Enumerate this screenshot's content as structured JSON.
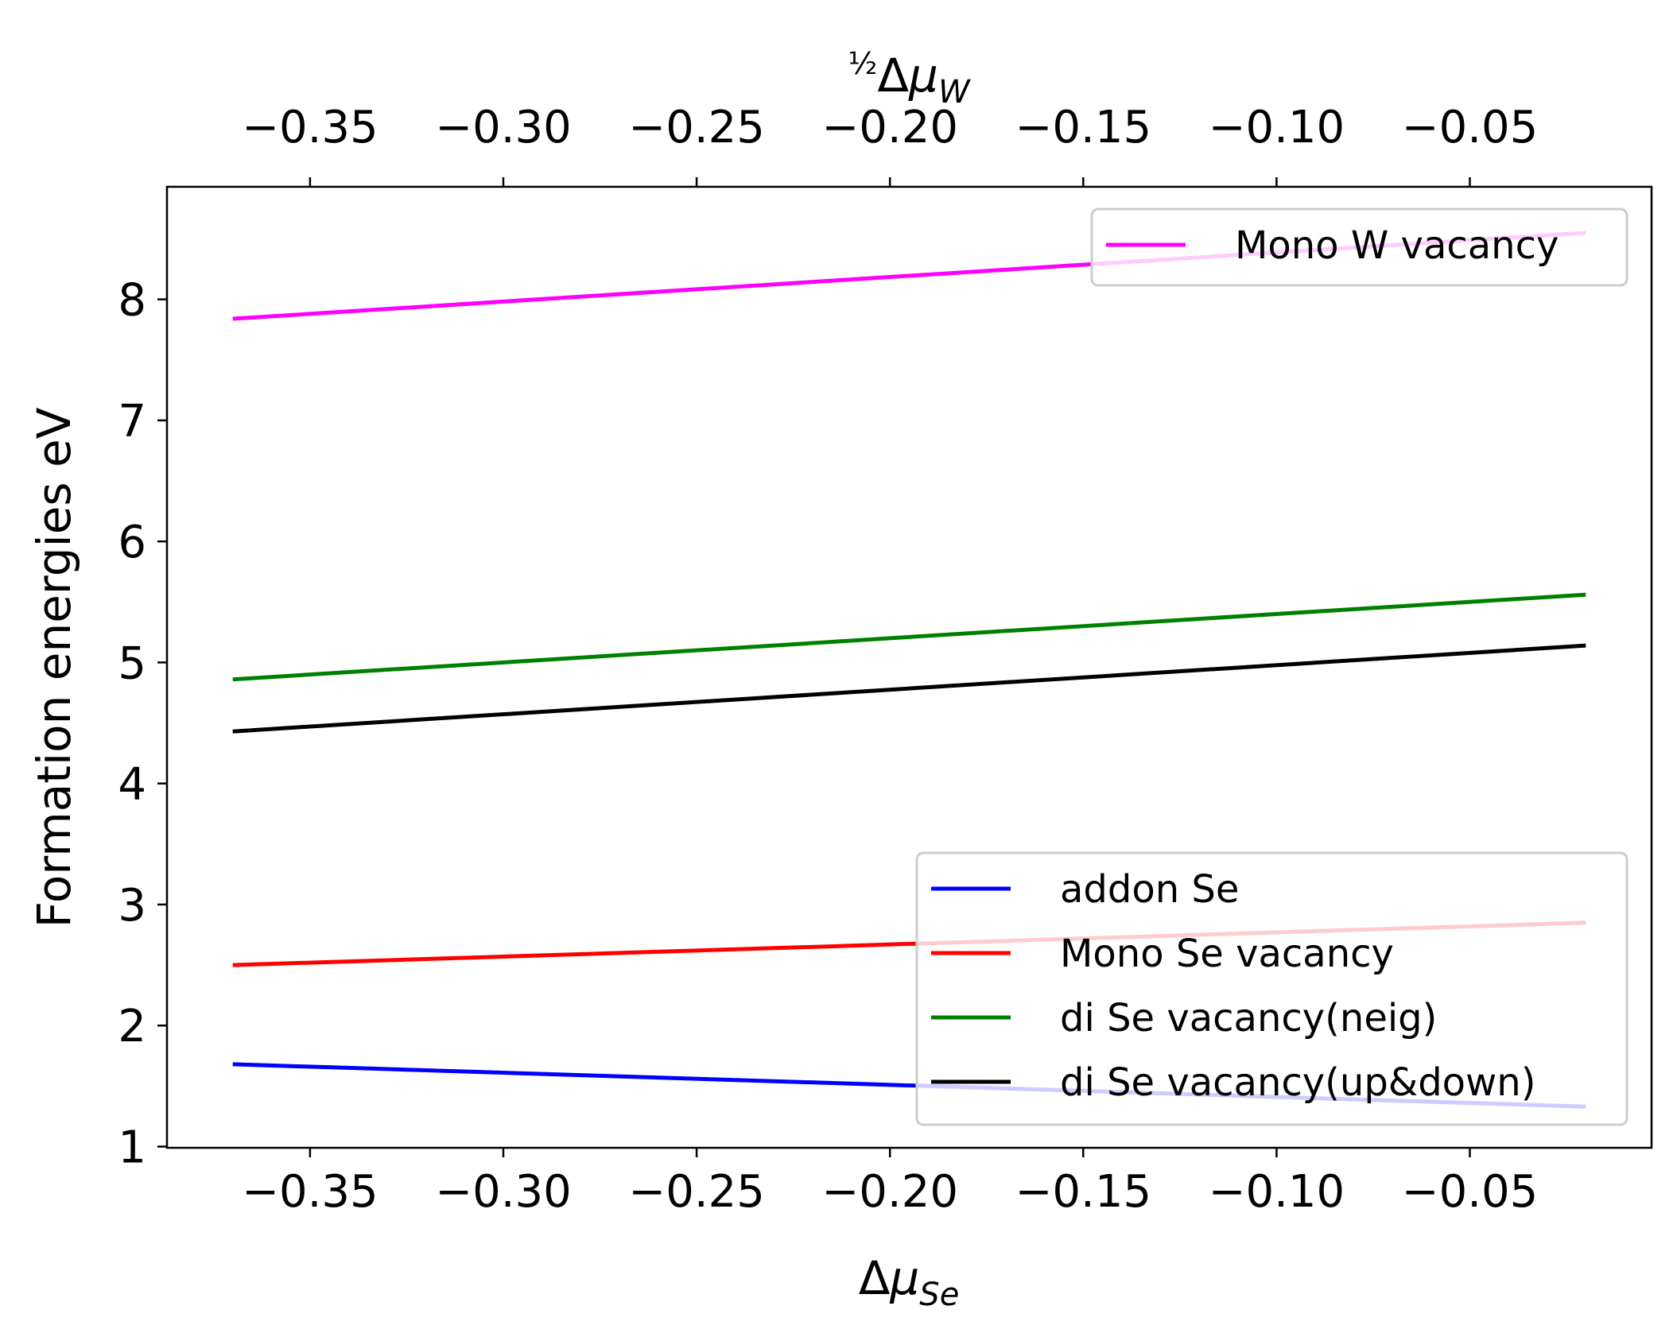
{
  "chart_data": {
    "type": "line",
    "xlabel": "Δμ_Se",
    "x2label": "½ Δμ_W",
    "ylabel": "Formation energies eV",
    "xlim": [
      -0.387,
      -0.003
    ],
    "ylim": [
      0.99,
      8.93
    ],
    "xticks": [
      -0.35,
      -0.3,
      -0.25,
      -0.2,
      -0.15,
      -0.1,
      -0.05
    ],
    "xtick_labels": [
      "−0.35",
      "−0.30",
      "−0.25",
      "−0.20",
      "−0.15",
      "−0.10",
      "−0.05"
    ],
    "yticks": [
      1,
      2,
      3,
      4,
      5,
      6,
      7,
      8
    ],
    "ytick_labels": [
      "1",
      "2",
      "3",
      "4",
      "5",
      "6",
      "7",
      "8"
    ],
    "grid": false,
    "x": [
      -0.37,
      -0.02
    ],
    "series": [
      {
        "name": "Mono W vacancy",
        "color": "#ff00ff",
        "values": [
          7.84,
          8.55
        ],
        "legend": "top-right"
      },
      {
        "name": "addon Se",
        "color": "#0000ff",
        "values": [
          1.68,
          1.33
        ],
        "legend": "bottom-right"
      },
      {
        "name": "Mono Se vacancy",
        "color": "#ff0000",
        "values": [
          2.5,
          2.85
        ],
        "legend": "bottom-right"
      },
      {
        "name": "di Se vacancy(neig)",
        "color": "#008000",
        "values": [
          4.86,
          5.56
        ],
        "legend": "bottom-right"
      },
      {
        "name": "di Se vacancy(up&down)",
        "color": "#000000",
        "values": [
          4.43,
          5.14
        ],
        "legend": "bottom-right"
      }
    ]
  }
}
